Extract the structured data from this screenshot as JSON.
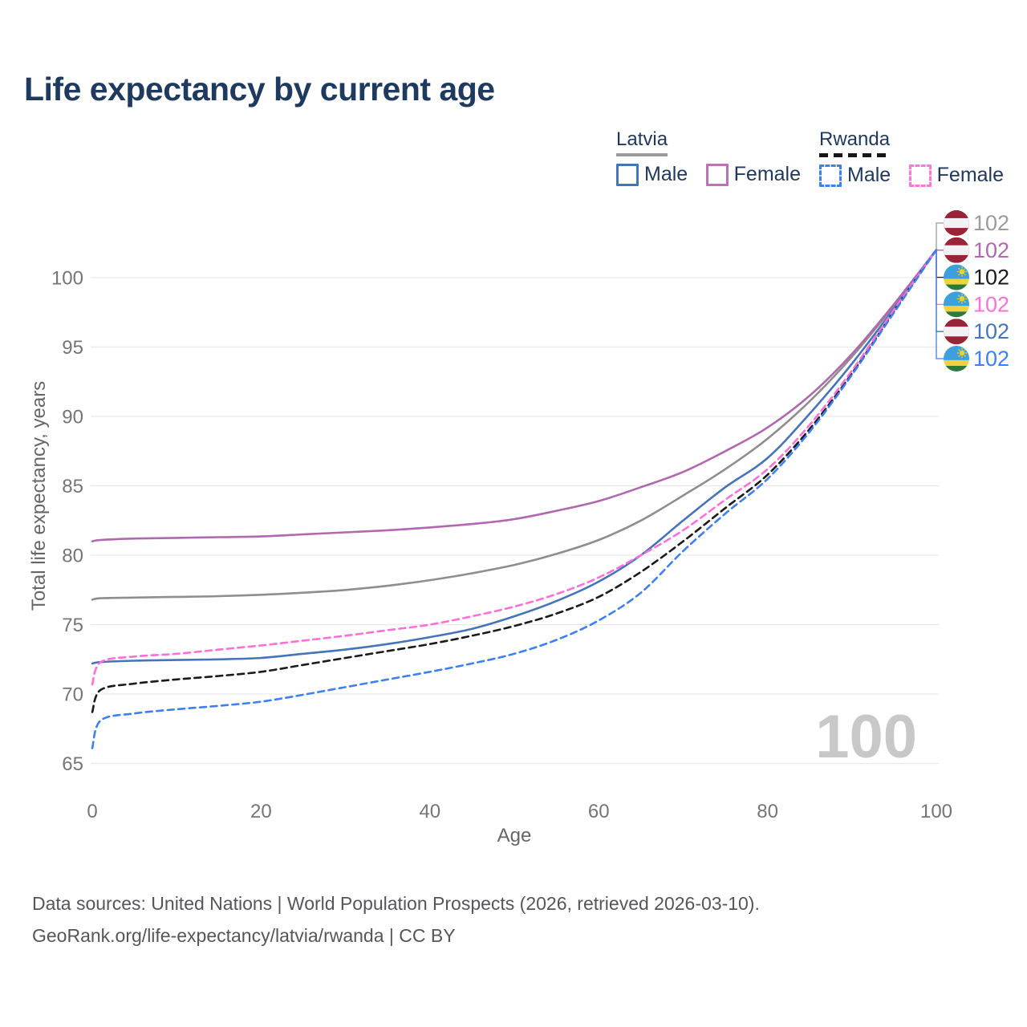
{
  "title": "Life expectancy by current age",
  "legend": {
    "groups": [
      {
        "name": "Latvia",
        "line_style": "solid",
        "line_color": "#9a9a9a",
        "items": [
          {
            "label": "Male",
            "swatch_color": "#4674b9"
          },
          {
            "label": "Female",
            "swatch_color": "#b774b7"
          }
        ]
      },
      {
        "name": "Rwanda",
        "line_style": "dashed",
        "line_color": "#161616",
        "items": [
          {
            "label": "Male",
            "swatch_color": "#3f80f0"
          },
          {
            "label": "Female",
            "swatch_color": "#ff77d8"
          }
        ]
      }
    ]
  },
  "chart_data": {
    "type": "line",
    "title": "Life expectancy by current age",
    "xlabel": "Age",
    "ylabel": "Total life expectancy, years",
    "x_ticks": [
      0,
      20,
      40,
      60,
      80,
      100
    ],
    "y_ticks": [
      65,
      70,
      75,
      80,
      85,
      90,
      95,
      100
    ],
    "xlim": [
      0,
      100
    ],
    "ylim": [
      65,
      103
    ],
    "grid": "horizontal-only",
    "age_watermark": "100",
    "x": [
      0,
      1,
      5,
      10,
      15,
      20,
      25,
      30,
      35,
      40,
      45,
      50,
      55,
      60,
      65,
      70,
      75,
      80,
      85,
      90,
      95,
      100
    ],
    "series": [
      {
        "id": "latvia-all",
        "country": "Latvia",
        "sex": "both",
        "color": "#8e8e8e",
        "dashed": false,
        "flag": "latvia",
        "label_color": "#9c9c9c",
        "end_label": "102",
        "values": [
          76.8,
          76.9,
          76.95,
          77.0,
          77.05,
          77.15,
          77.3,
          77.5,
          77.8,
          78.2,
          78.7,
          79.3,
          80.1,
          81.1,
          82.5,
          84.3,
          86.2,
          88.4,
          91.1,
          94.3,
          98.0,
          102
        ]
      },
      {
        "id": "latvia-female",
        "country": "Latvia",
        "sex": "female",
        "color": "#b068ae",
        "dashed": false,
        "flag": "latvia",
        "label_color": "#b068ae",
        "end_label": "102",
        "values": [
          81.0,
          81.1,
          81.2,
          81.25,
          81.3,
          81.35,
          81.5,
          81.65,
          81.8,
          82.0,
          82.25,
          82.6,
          83.2,
          83.9,
          84.9,
          86.0,
          87.5,
          89.2,
          91.5,
          94.5,
          98.1,
          102
        ]
      },
      {
        "id": "latvia-male",
        "country": "Latvia",
        "sex": "male",
        "color": "#4674b9",
        "dashed": false,
        "flag": "latvia",
        "label_color": "#4674b9",
        "end_label": "102",
        "values": [
          72.2,
          72.3,
          72.4,
          72.45,
          72.5,
          72.6,
          72.9,
          73.2,
          73.6,
          74.1,
          74.7,
          75.6,
          76.7,
          78.1,
          80.0,
          82.5,
          84.9,
          87.0,
          90.2,
          93.8,
          97.8,
          102
        ]
      },
      {
        "id": "rwanda-all",
        "country": "Rwanda",
        "sex": "both",
        "color": "#1a1a1a",
        "dashed": true,
        "flag": "rwanda",
        "label_color": "#1a1a1a",
        "end_label": "102",
        "values": [
          68.7,
          70.3,
          70.75,
          71.05,
          71.3,
          71.6,
          72.1,
          72.6,
          73.1,
          73.6,
          74.2,
          74.9,
          75.8,
          77.0,
          78.8,
          81.0,
          83.4,
          85.8,
          89.1,
          93.1,
          97.6,
          102
        ]
      },
      {
        "id": "rwanda-female",
        "country": "Rwanda",
        "sex": "female",
        "color": "#ff6fd8",
        "dashed": true,
        "flag": "rwanda",
        "label_color": "#ff6fd8",
        "end_label": "102",
        "values": [
          70.7,
          72.3,
          72.7,
          72.9,
          73.2,
          73.5,
          73.85,
          74.2,
          74.6,
          75.0,
          75.6,
          76.3,
          77.2,
          78.4,
          80.0,
          81.8,
          84.0,
          86.2,
          89.4,
          93.3,
          97.7,
          102
        ]
      },
      {
        "id": "rwanda-male",
        "country": "Rwanda",
        "sex": "male",
        "color": "#3f80f0",
        "dashed": true,
        "flag": "rwanda",
        "label_color": "#3f80f0",
        "end_label": "102",
        "values": [
          66.1,
          68.1,
          68.6,
          68.9,
          69.15,
          69.45,
          69.95,
          70.5,
          71.05,
          71.6,
          72.2,
          72.9,
          73.9,
          75.3,
          77.3,
          80.3,
          83.0,
          85.5,
          88.9,
          93.0,
          97.5,
          102
        ]
      }
    ],
    "end_rows": [
      "latvia-all",
      "latvia-female",
      "rwanda-all",
      "rwanda-female",
      "latvia-male",
      "rwanda-male"
    ]
  },
  "footer": {
    "line1": "Data sources: United Nations | World Population Prospects (2026, retrieved 2026-03-10).",
    "line2": "GeoRank.org/life-expectancy/latvia/rwanda | CC BY"
  }
}
